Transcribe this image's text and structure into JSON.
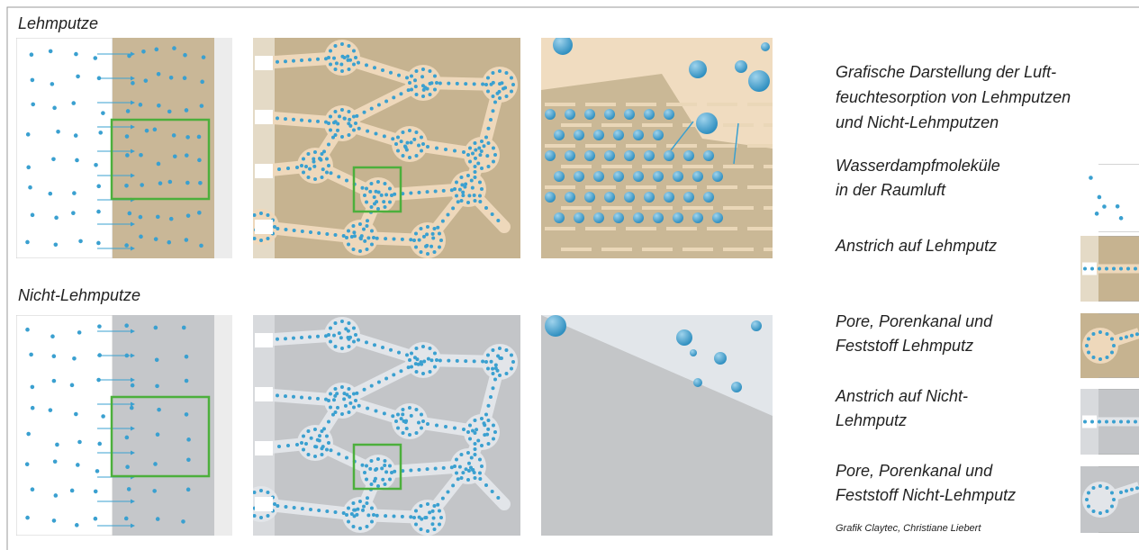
{
  "sections": [
    {
      "label": "Lehmputze"
    },
    {
      "label": "Nicht-Lehmputze"
    }
  ],
  "legend": {
    "title_lines": [
      "Grafische Darstellung der Luft-",
      "feuchtesorption von Lehmputzen",
      "und Nicht-Lehmputzen"
    ],
    "items": [
      {
        "lines": [
          "Wasserdampfmoleküle",
          "in der Raumluft"
        ]
      },
      {
        "lines": [
          "Anstrich auf Lehmputz"
        ]
      },
      {
        "lines": [
          "Pore, Porenkanal und",
          "Feststoff Lehmputz"
        ]
      },
      {
        "lines": [
          "Anstrich auf Nicht-",
          "Lehmputz"
        ]
      },
      {
        "lines": [
          "Pore, Porenkanal und",
          "Feststoff Nicht-Lehmputz"
        ]
      }
    ],
    "credit": "Grafik Claytec, Christiane Liebert"
  }
}
